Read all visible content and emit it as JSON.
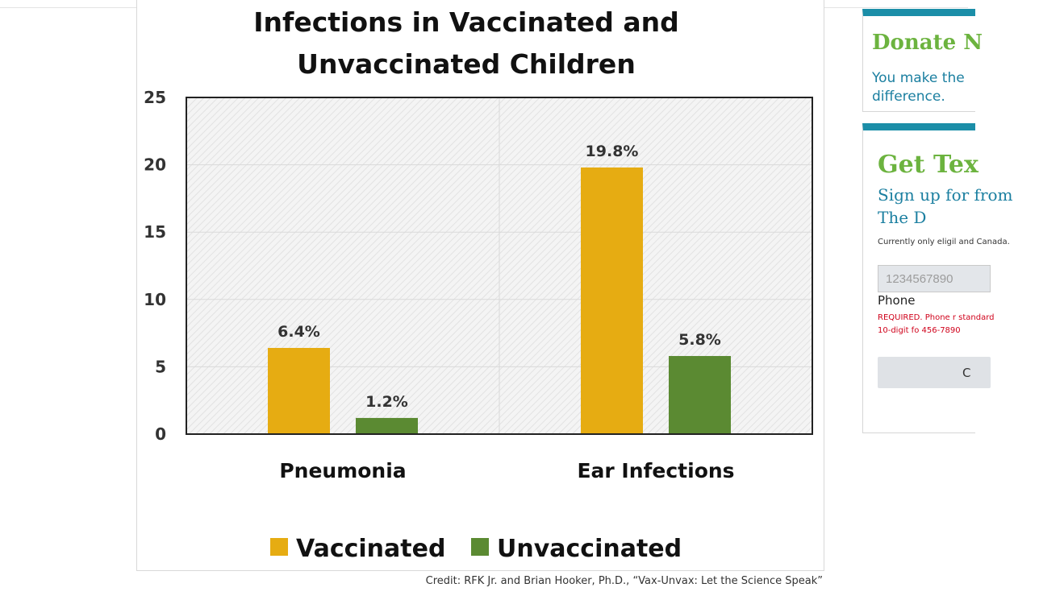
{
  "chart_data": {
    "type": "bar",
    "title_lines": [
      "Infections in Vaccinated and",
      "Unvaccinated Children"
    ],
    "categories": [
      "Pneumonia",
      "Ear Infections"
    ],
    "series": [
      {
        "name": "Vaccinated",
        "values": [
          6.4,
          19.8
        ],
        "color": "#e6ac12",
        "labels": [
          "6.4%",
          "19.8%"
        ]
      },
      {
        "name": "Unvaccinated",
        "values": [
          1.2,
          5.8
        ],
        "color": "#5b8a32",
        "labels": [
          "1.2%",
          "5.8%"
        ]
      }
    ],
    "ylim": [
      0,
      25
    ],
    "yticks": [
      0,
      5,
      10,
      15,
      20,
      25
    ],
    "ytick_labels": [
      "0",
      "5",
      "10",
      "15",
      "20",
      "25"
    ],
    "grid": true,
    "legend_position": "bottom",
    "xlabel": "",
    "ylabel": ""
  },
  "caption": "Credit: RFK Jr. and Brian Hooker, Ph.D., “Vax-Unvax: Let the Science Speak”",
  "sidebar": {
    "donate": {
      "title": "Donate N",
      "subtitle": "You make the difference."
    },
    "text_signup": {
      "title": "Get Tex",
      "subtitle": "Sign up for from The D",
      "note": "Currently only eligil and Canada.",
      "phone_placeholder": "1234567890",
      "phone_label": "Phone",
      "required_note": "REQUIRED. Phone r standard 10-digit fo 456-7890",
      "submit_label": "C"
    }
  },
  "colors": {
    "accent_bar": "#1b8ea8",
    "green_heading": "#6cb33f",
    "link_blue": "#1b7fa0",
    "required_red": "#d0021b"
  }
}
